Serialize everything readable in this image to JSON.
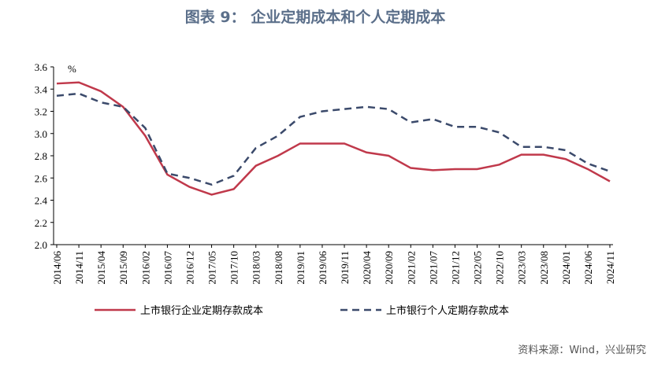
{
  "chart_data": {
    "type": "line",
    "title": "图表 9： 企业定期成本和个人定期成本",
    "y_unit": "%",
    "source": "资料来源：Wind，兴业研究",
    "categories": [
      "2014/06",
      "2014/11",
      "2015/04",
      "2015/09",
      "2016/02",
      "2016/07",
      "2016/12",
      "2017/05",
      "2017/10",
      "2018/03",
      "2018/08",
      "2019/01",
      "2019/06",
      "2019/11",
      "2020/04",
      "2020/09",
      "2021/02",
      "2021/07",
      "2021/12",
      "2022/05",
      "2022/10",
      "2023/03",
      "2023/08",
      "2024/01",
      "2024/06",
      "2024/11"
    ],
    "series": [
      {
        "name": "上市银行企业定期存款成本",
        "color": "#c0394b",
        "dash": false,
        "values": [
          3.45,
          3.46,
          3.38,
          3.24,
          2.98,
          2.63,
          2.52,
          2.45,
          2.5,
          2.71,
          2.8,
          2.91,
          2.91,
          2.91,
          2.83,
          2.8,
          2.69,
          2.67,
          2.68,
          2.68,
          2.72,
          2.81,
          2.81,
          2.77,
          2.68,
          2.57
        ]
      },
      {
        "name": "上市银行个人定期存款成本",
        "color": "#3b4a6b",
        "dash": true,
        "values": [
          3.34,
          3.36,
          3.28,
          3.24,
          3.05,
          2.64,
          2.6,
          2.54,
          2.62,
          2.87,
          2.98,
          3.15,
          3.2,
          3.22,
          3.24,
          3.22,
          3.1,
          3.13,
          3.06,
          3.06,
          3.01,
          2.88,
          2.88,
          2.85,
          2.73,
          2.66
        ]
      }
    ],
    "ylim": [
      2.0,
      3.6
    ],
    "yticks": [
      {
        "value": 2.0,
        "label": "2.0"
      },
      2.2,
      2.4,
      2.6,
      2.8,
      {
        "value": 3.0,
        "label": "3.0"
      },
      3.2,
      3.4,
      3.6
    ],
    "grid": false
  }
}
